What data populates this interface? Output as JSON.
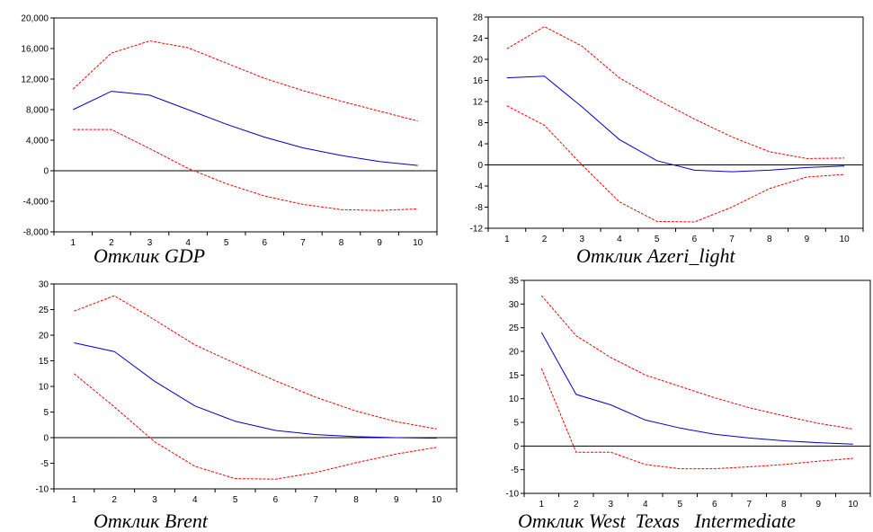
{
  "chart_data": [
    {
      "type": "line",
      "title": "Отклик GDP",
      "x": [
        1,
        2,
        3,
        4,
        5,
        6,
        7,
        8,
        9,
        10
      ],
      "x_ticks": [
        "1",
        "2",
        "3",
        "4",
        "5",
        "6",
        "7",
        "8",
        "9",
        "10"
      ],
      "ylim": [
        -8000,
        20000
      ],
      "y_ticks": [
        -8000,
        -4000,
        0,
        4000,
        8000,
        12000,
        16000,
        20000
      ],
      "y_tick_labels": [
        "-8,000",
        "-4,000",
        "0",
        "4,000",
        "8,000",
        "12,000",
        "16,000",
        "20,000"
      ],
      "series": [
        {
          "role": "upper",
          "color": "#ff0000",
          "dash": true,
          "values": [
            10700,
            15400,
            17000,
            16100,
            14100,
            12100,
            10500,
            9100,
            7800,
            6500
          ]
        },
        {
          "role": "response",
          "color": "#0000cc",
          "dash": false,
          "values": [
            8000,
            10400,
            9900,
            8000,
            6100,
            4400,
            3000,
            2000,
            1200,
            700
          ]
        },
        {
          "role": "lower",
          "color": "#ff0000",
          "dash": true,
          "values": [
            5400,
            5400,
            2900,
            300,
            -1700,
            -3300,
            -4400,
            -5100,
            -5200,
            -5000
          ]
        }
      ]
    },
    {
      "type": "line",
      "title": "Отклик Azeri_light",
      "x": [
        1,
        2,
        3,
        4,
        5,
        6,
        7,
        8,
        9,
        10
      ],
      "x_ticks": [
        "1",
        "2",
        "3",
        "4",
        "5",
        "6",
        "7",
        "8",
        "9",
        "10"
      ],
      "ylim": [
        -12,
        28
      ],
      "y_ticks": [
        -12,
        -8,
        -4,
        0,
        4,
        8,
        12,
        16,
        20,
        24,
        28
      ],
      "y_tick_labels": [
        "-12",
        "-8",
        "-4",
        "0",
        "4",
        "8",
        "12",
        "16",
        "20",
        "24",
        "28"
      ],
      "series": [
        {
          "role": "upper",
          "color": "#ff0000",
          "dash": true,
          "values": [
            22,
            26.2,
            22.5,
            16.5,
            12.4,
            8.7,
            5.3,
            2.5,
            1.2,
            1.3
          ]
        },
        {
          "role": "response",
          "color": "#0000cc",
          "dash": false,
          "values": [
            16.5,
            16.8,
            11,
            4.8,
            0.8,
            -1,
            -1.3,
            -1,
            -0.5,
            -0.2
          ]
        },
        {
          "role": "lower",
          "color": "#ff0000",
          "dash": true,
          "values": [
            11.2,
            7.5,
            0,
            -7,
            -10.7,
            -10.8,
            -8,
            -4.5,
            -2.3,
            -1.8
          ]
        }
      ]
    },
    {
      "type": "line",
      "title": "Отклик Brent",
      "x": [
        1,
        2,
        3,
        4,
        5,
        6,
        7,
        8,
        9,
        10
      ],
      "x_ticks": [
        "1",
        "2",
        "3",
        "4",
        "5",
        "6",
        "7",
        "8",
        "9",
        "10"
      ],
      "ylim": [
        -10,
        30
      ],
      "y_ticks": [
        -10,
        -5,
        0,
        5,
        10,
        15,
        20,
        25,
        30
      ],
      "y_tick_labels": [
        "-10",
        "-5",
        "0",
        "5",
        "10",
        "15",
        "20",
        "25",
        "30"
      ],
      "series": [
        {
          "role": "upper",
          "color": "#ff0000",
          "dash": true,
          "values": [
            24.7,
            27.7,
            23,
            18.1,
            14.5,
            11.1,
            7.9,
            5.2,
            3.1,
            1.7
          ]
        },
        {
          "role": "response",
          "color": "#0000cc",
          "dash": false,
          "values": [
            18.5,
            16.8,
            11,
            6.2,
            3.2,
            1.4,
            0.6,
            0.2,
            0,
            -0.1
          ]
        },
        {
          "role": "lower",
          "color": "#ff0000",
          "dash": true,
          "values": [
            12.5,
            6,
            -0.8,
            -5.6,
            -8,
            -8.1,
            -6.8,
            -4.9,
            -3.2,
            -1.9
          ]
        }
      ]
    },
    {
      "type": "line",
      "title": "Отклик West  Texas   Intermediate",
      "x": [
        1,
        2,
        3,
        4,
        5,
        6,
        7,
        8,
        9,
        10
      ],
      "x_ticks": [
        "1",
        "2",
        "3",
        "4",
        "5",
        "6",
        "7",
        "8",
        "9",
        "10"
      ],
      "ylim": [
        -10,
        35
      ],
      "y_ticks": [
        -10,
        -5,
        0,
        5,
        10,
        15,
        20,
        25,
        30,
        35
      ],
      "y_tick_labels": [
        "-10",
        "-5",
        "0",
        "5",
        "10",
        "15",
        "20",
        "25",
        "30",
        "35"
      ],
      "series": [
        {
          "role": "upper",
          "color": "#ff0000",
          "dash": true,
          "values": [
            31.8,
            23.3,
            18.7,
            15,
            12.6,
            10.2,
            8.1,
            6.4,
            4.8,
            3.6
          ]
        },
        {
          "role": "response",
          "color": "#0000cc",
          "dash": false,
          "values": [
            24,
            10.9,
            8.7,
            5.5,
            3.8,
            2.5,
            1.7,
            1.1,
            0.7,
            0.4
          ]
        },
        {
          "role": "lower",
          "color": "#ff0000",
          "dash": true,
          "values": [
            16.4,
            -1.3,
            -1.3,
            -3.9,
            -4.8,
            -4.8,
            -4.4,
            -3.9,
            -3.2,
            -2.6
          ]
        }
      ]
    }
  ]
}
